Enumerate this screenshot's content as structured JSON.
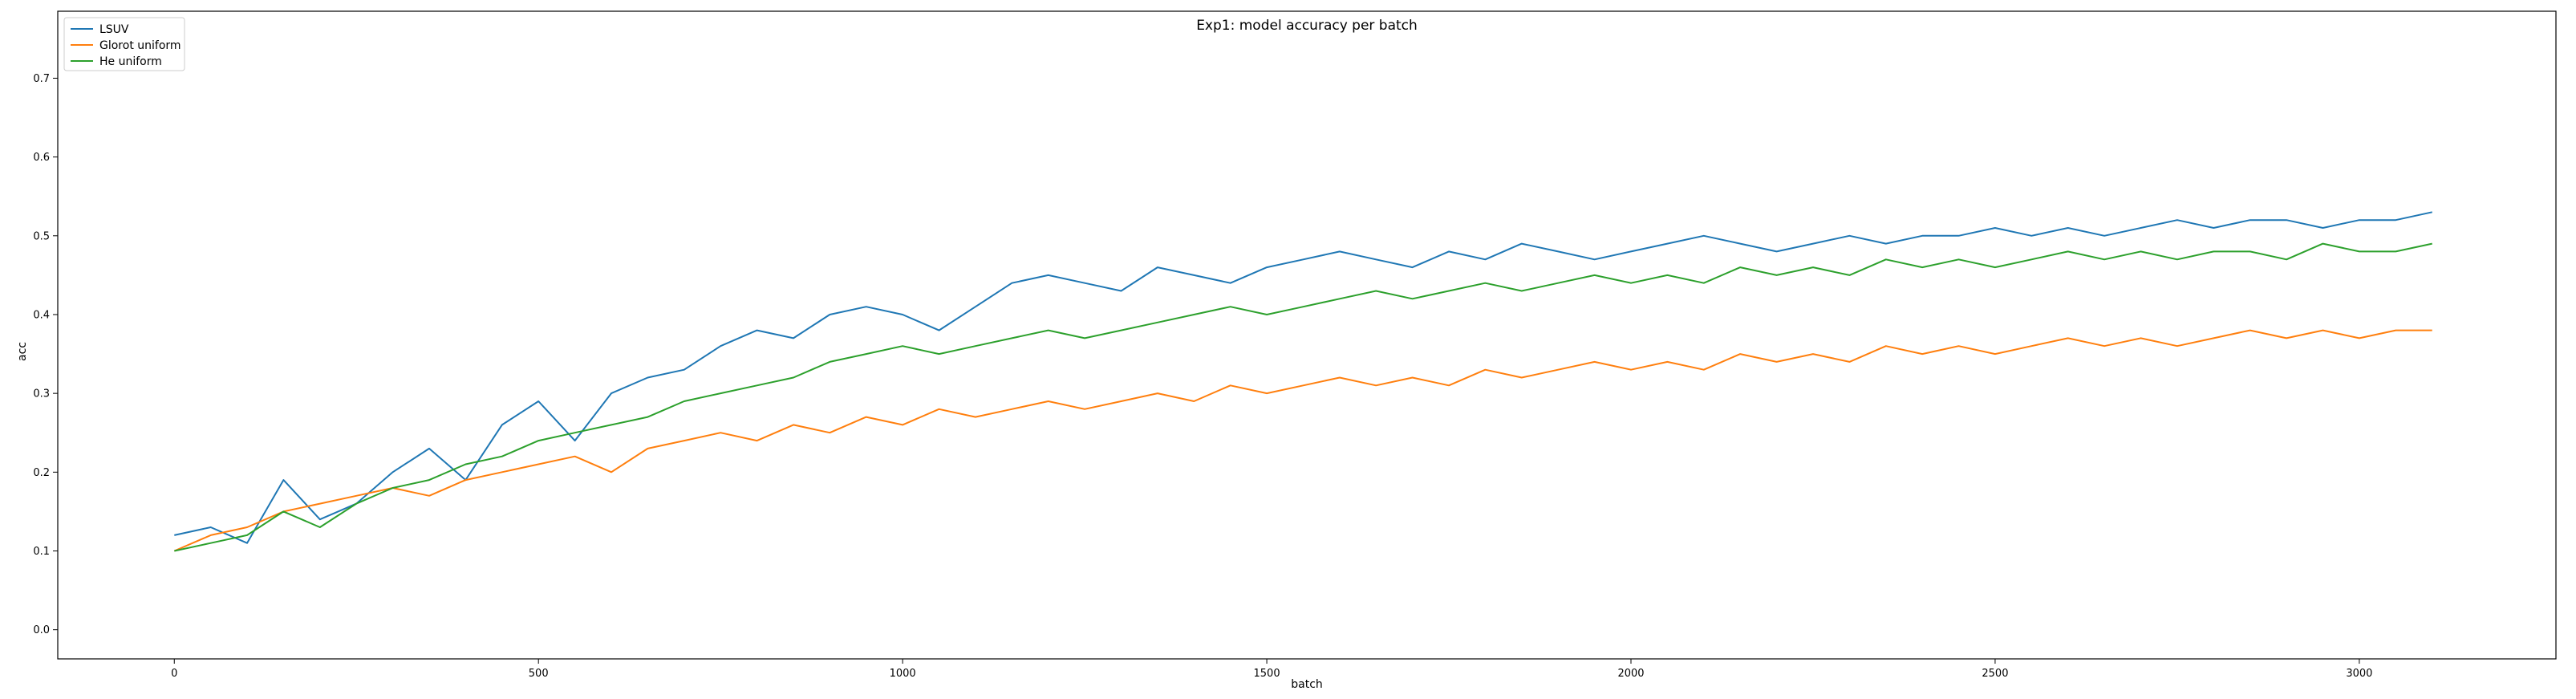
{
  "chart_data": {
    "type": "line",
    "title": "Exp1: model accuracy per batch",
    "xlabel": "batch",
    "ylabel": "acc",
    "xlim": [
      -160,
      3270
    ],
    "ylim": [
      -0.037,
      0.785
    ],
    "x_ticks": [
      0,
      500,
      1000,
      1500,
      2000,
      2500,
      3000
    ],
    "y_ticks": [
      0.0,
      0.1,
      0.2,
      0.3,
      0.4,
      0.5,
      0.6,
      0.7
    ],
    "y_tick_labels": [
      "0.0",
      "0.1",
      "0.2",
      "0.3",
      "0.4",
      "0.5",
      "0.6",
      "0.7"
    ],
    "grid": false,
    "legend_position": "upper-left",
    "x_start": 0,
    "x_step": 50,
    "series": [
      {
        "name": "LSUV",
        "color": "#1f77b4",
        "values": [
          0.12,
          0.13,
          0.11,
          0.19,
          0.14,
          0.16,
          0.2,
          0.23,
          0.19,
          0.26,
          0.29,
          0.24,
          0.3,
          0.32,
          0.33,
          0.36,
          0.38,
          0.37,
          0.4,
          0.41,
          0.4,
          0.38,
          0.41,
          0.44,
          0.45,
          0.44,
          0.43,
          0.46,
          0.45,
          0.44,
          0.46,
          0.47,
          0.48,
          0.47,
          0.46,
          0.48,
          0.47,
          0.49,
          0.48,
          0.47,
          0.48,
          0.49,
          0.5,
          0.49,
          0.48,
          0.49,
          0.5,
          0.49,
          0.5,
          0.5,
          0.51,
          0.5,
          0.51,
          0.5,
          0.51,
          0.52,
          0.51,
          0.52,
          0.52,
          0.51,
          0.52,
          0.52,
          0.53
        ]
      },
      {
        "name": "Glorot uniform",
        "color": "#ff7f0e",
        "values": [
          0.1,
          0.12,
          0.13,
          0.15,
          0.16,
          0.17,
          0.18,
          0.17,
          0.19,
          0.2,
          0.21,
          0.22,
          0.2,
          0.23,
          0.24,
          0.25,
          0.24,
          0.26,
          0.25,
          0.27,
          0.26,
          0.28,
          0.27,
          0.28,
          0.29,
          0.28,
          0.29,
          0.3,
          0.29,
          0.31,
          0.3,
          0.31,
          0.32,
          0.31,
          0.32,
          0.31,
          0.33,
          0.32,
          0.33,
          0.34,
          0.33,
          0.34,
          0.33,
          0.35,
          0.34,
          0.35,
          0.34,
          0.36,
          0.35,
          0.36,
          0.35,
          0.36,
          0.37,
          0.36,
          0.37,
          0.36,
          0.37,
          0.38,
          0.37,
          0.38,
          0.37,
          0.38,
          0.38
        ]
      },
      {
        "name": "He uniform",
        "color": "#2ca02c",
        "values": [
          0.1,
          0.11,
          0.12,
          0.15,
          0.13,
          0.16,
          0.18,
          0.19,
          0.21,
          0.22,
          0.24,
          0.25,
          0.26,
          0.27,
          0.29,
          0.3,
          0.31,
          0.32,
          0.34,
          0.35,
          0.36,
          0.35,
          0.36,
          0.37,
          0.38,
          0.37,
          0.38,
          0.39,
          0.4,
          0.41,
          0.4,
          0.41,
          0.42,
          0.43,
          0.42,
          0.43,
          0.44,
          0.43,
          0.44,
          0.45,
          0.44,
          0.45,
          0.44,
          0.46,
          0.45,
          0.46,
          0.45,
          0.47,
          0.46,
          0.47,
          0.46,
          0.47,
          0.48,
          0.47,
          0.48,
          0.47,
          0.48,
          0.48,
          0.47,
          0.49,
          0.48,
          0.48,
          0.49
        ]
      }
    ]
  }
}
